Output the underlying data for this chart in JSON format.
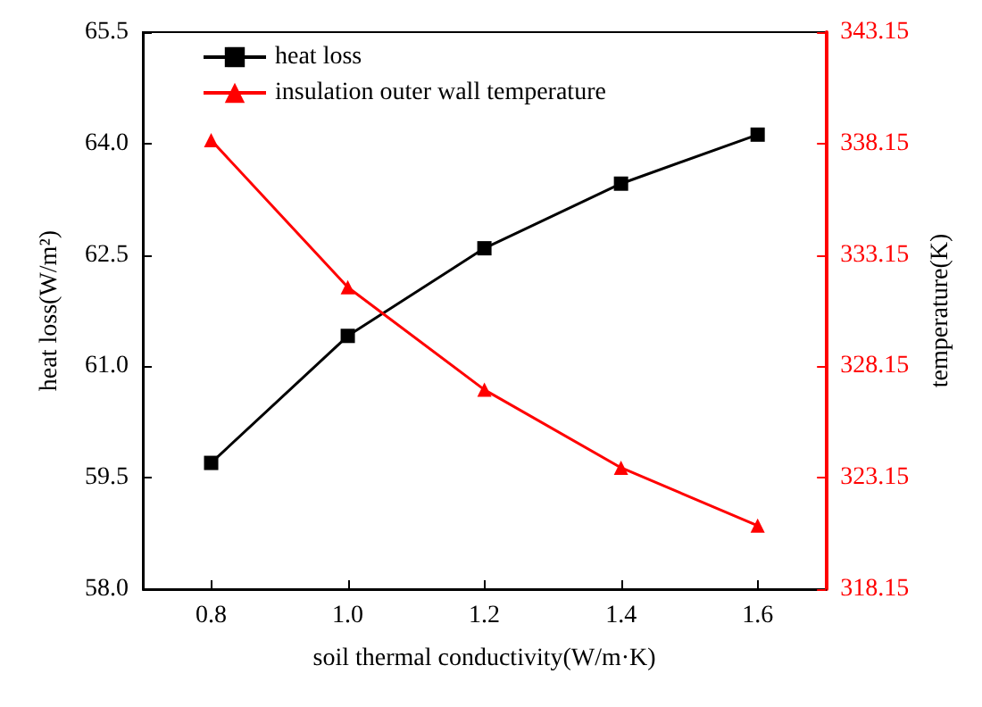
{
  "chart_data": {
    "type": "line",
    "xlabel": "soil thermal conductivity(W/m·K)",
    "ylabel": "heat loss(W/m²)",
    "y2label": "temperature(K)",
    "x": [
      0.8,
      1.0,
      1.2,
      1.4,
      1.6
    ],
    "series": [
      {
        "name": "heat loss",
        "color": "#000000",
        "marker": "square",
        "values": [
          59.7,
          61.41,
          62.59,
          63.46,
          64.12
        ]
      },
      {
        "name": "insulation outer wall temperature",
        "color": "#ff0000",
        "marker": "triangle",
        "axis": "y2",
        "values": [
          338.3,
          331.7,
          327.1,
          323.6,
          321.0
        ]
      }
    ],
    "xlim": [
      0.7,
      1.7
    ],
    "xticks": [
      0.8,
      {
        "value": 1.0,
        "label": "1.0"
      },
      1.2,
      1.4,
      1.6
    ],
    "ylim": [
      58.0,
      65.5
    ],
    "yticks": [
      {
        "value": 58,
        "label": "58.0"
      },
      59.5,
      {
        "value": 61,
        "label": "61.0"
      },
      62.5,
      {
        "value": 64,
        "label": "64.0"
      },
      65.5
    ],
    "y2lim": [
      318.15,
      343.15
    ],
    "y2ticks": [
      318.15,
      323.15,
      328.15,
      333.15,
      338.15,
      343.15
    ],
    "legend": "top left",
    "line_style": "solid"
  }
}
